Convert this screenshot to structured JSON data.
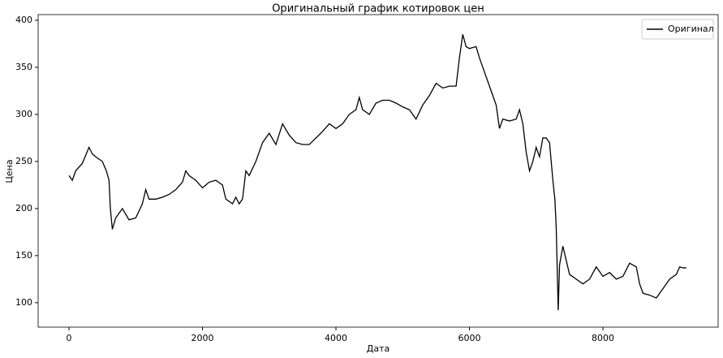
{
  "chart_data": {
    "type": "line",
    "title": "Оригинальный график котировок цен",
    "x_label": "Дата",
    "y_label": "Цена",
    "x": [
      0,
      50,
      100,
      200,
      300,
      350,
      400,
      500,
      560,
      600,
      620,
      650,
      700,
      800,
      900,
      1000,
      1100,
      1150,
      1200,
      1300,
      1400,
      1500,
      1600,
      1700,
      1750,
      1800,
      1900,
      2000,
      2100,
      2200,
      2300,
      2350,
      2450,
      2500,
      2550,
      2600,
      2650,
      2700,
      2800,
      2900,
      3000,
      3100,
      3200,
      3300,
      3400,
      3500,
      3600,
      3700,
      3800,
      3900,
      4000,
      4100,
      4200,
      4300,
      4350,
      4400,
      4500,
      4600,
      4700,
      4800,
      4900,
      5000,
      5100,
      5200,
      5300,
      5400,
      5500,
      5600,
      5700,
      5800,
      5850,
      5900,
      5950,
      6000,
      6100,
      6150,
      6200,
      6300,
      6350,
      6400,
      6450,
      6500,
      6600,
      6700,
      6750,
      6800,
      6850,
      6900,
      6950,
      7000,
      7050,
      7100,
      7150,
      7200,
      7250,
      7280,
      7300,
      7330,
      7350,
      7400,
      7450,
      7500,
      7600,
      7700,
      7800,
      7900,
      8000,
      8100,
      8200,
      8300,
      8400,
      8500,
      8550,
      8600,
      8700,
      8800,
      8900,
      9000,
      9100,
      9150,
      9200,
      9250
    ],
    "series": [
      {
        "name": "Оригинал",
        "color": "#000000",
        "values": [
          235,
          230,
          240,
          248,
          265,
          258,
          255,
          250,
          240,
          230,
          200,
          178,
          190,
          200,
          188,
          190,
          205,
          220,
          210,
          210,
          212,
          215,
          220,
          228,
          240,
          235,
          230,
          222,
          228,
          230,
          225,
          210,
          205,
          212,
          205,
          210,
          240,
          235,
          250,
          270,
          280,
          268,
          290,
          278,
          270,
          268,
          268,
          275,
          282,
          290,
          285,
          290,
          300,
          305,
          318,
          305,
          300,
          312,
          315,
          315,
          312,
          308,
          305,
          295,
          310,
          320,
          333,
          328,
          330,
          330,
          360,
          385,
          372,
          370,
          372,
          360,
          350,
          330,
          320,
          310,
          285,
          295,
          293,
          295,
          305,
          290,
          260,
          240,
          250,
          265,
          255,
          275,
          275,
          270,
          230,
          210,
          180,
          92,
          140,
          160,
          145,
          130,
          125,
          120,
          125,
          138,
          128,
          132,
          125,
          128,
          142,
          138,
          120,
          110,
          108,
          105,
          115,
          125,
          130,
          138,
          137,
          137
        ]
      }
    ],
    "xlim": [
      -462,
      9726
    ],
    "ylim": [
      74,
      406
    ],
    "xticks": [
      0,
      2000,
      4000,
      6000,
      8000
    ],
    "yticks": [
      100,
      150,
      200,
      250,
      300,
      350,
      400
    ],
    "legend": "upper right"
  }
}
